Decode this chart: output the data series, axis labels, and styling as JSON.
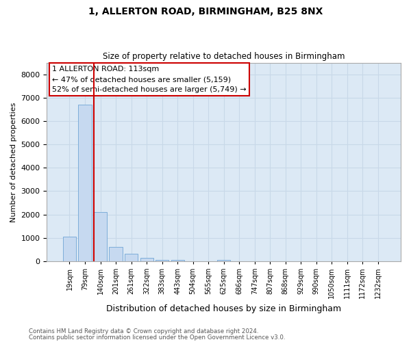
{
  "title_line1": "1, ALLERTON ROAD, BIRMINGHAM, B25 8NX",
  "title_line2": "Size of property relative to detached houses in Birmingham",
  "xlabel": "Distribution of detached houses by size in Birmingham",
  "ylabel": "Number of detached properties",
  "categories": [
    "19sqm",
    "79sqm",
    "140sqm",
    "201sqm",
    "261sqm",
    "322sqm",
    "383sqm",
    "443sqm",
    "504sqm",
    "565sqm",
    "625sqm",
    "686sqm",
    "747sqm",
    "807sqm",
    "868sqm",
    "929sqm",
    "990sqm",
    "1050sqm",
    "1111sqm",
    "1172sqm",
    "1232sqm"
  ],
  "values": [
    1050,
    6700,
    2100,
    600,
    300,
    130,
    50,
    50,
    0,
    0,
    50,
    0,
    0,
    0,
    0,
    0,
    0,
    0,
    0,
    0,
    0
  ],
  "bar_color": "#c6d9f0",
  "bar_edge_color": "#7dadd9",
  "vline_color": "#cc0000",
  "annotation_text": "1 ALLERTON ROAD: 113sqm\n← 47% of detached houses are smaller (5,159)\n52% of semi-detached houses are larger (5,749) →",
  "annotation_box_color": "white",
  "annotation_box_edge_color": "#cc0000",
  "ylim": [
    0,
    8500
  ],
  "yticks": [
    0,
    1000,
    2000,
    3000,
    4000,
    5000,
    6000,
    7000,
    8000
  ],
  "grid_color": "#c8d8e8",
  "background_color": "#dce9f5",
  "footer_line1": "Contains HM Land Registry data © Crown copyright and database right 2024.",
  "footer_line2": "Contains public sector information licensed under the Open Government Licence v3.0."
}
